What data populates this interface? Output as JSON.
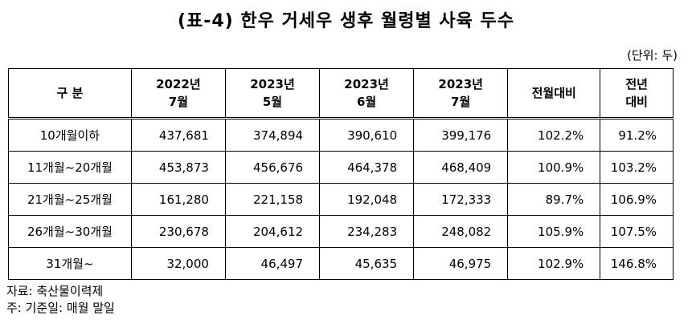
{
  "title": "(표-4) 한우 거세우 생후 월령별 사육 두수",
  "unit": "(단위: 두)",
  "table": {
    "headers": [
      [
        "구 분"
      ],
      [
        "2022년",
        "7월"
      ],
      [
        "2023년",
        "5월"
      ],
      [
        "2023년",
        "6월"
      ],
      [
        "2023년",
        "7월"
      ],
      [
        "전월대비"
      ],
      [
        "전년",
        "대비"
      ]
    ],
    "rows": [
      [
        "10개월이하",
        "437,681",
        "374,894",
        "390,610",
        "399,176",
        "102.2%",
        "91.2%"
      ],
      [
        "11개월~20개월",
        "453,873",
        "456,676",
        "464,378",
        "468,409",
        "100.9%",
        "103.2%"
      ],
      [
        "21개월~25개월",
        "161,280",
        "221,158",
        "192,048",
        "172,333",
        "89.7%",
        "106.9%"
      ],
      [
        "26개월~30개월",
        "230,678",
        "204,612",
        "234,283",
        "248,082",
        "105.9%",
        "107.5%"
      ],
      [
        "31개월~",
        "32,000",
        "46,497",
        "45,635",
        "46,975",
        "102.9%",
        "146.8%"
      ]
    ]
  },
  "footnotes": {
    "source": "자료: 축산물이력제",
    "note": "주: 기준일: 매월 말일"
  }
}
